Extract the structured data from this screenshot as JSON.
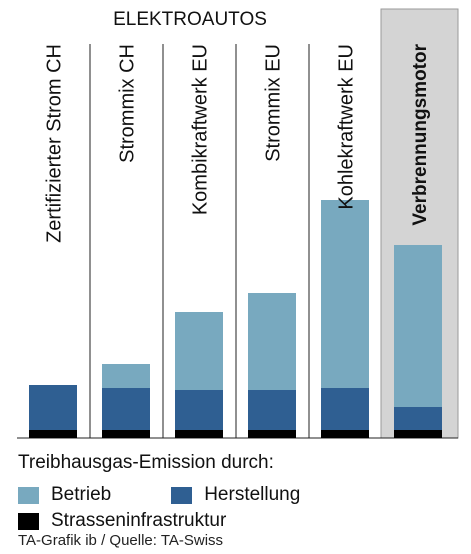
{
  "colors": {
    "betrieb": "#78a9bf",
    "herstellung": "#2f5f92",
    "infrastruktur": "#000000",
    "highlight_bg": "#d4d4d4",
    "divider": "#222222"
  },
  "chart_data": {
    "type": "bar",
    "stacked": true,
    "title": "ELEKTROAUTOS",
    "categories": [
      "Zertifizierter Strom CH",
      "Strommix CH",
      "Kombikraftwerk EU",
      "Strommix EU",
      "Kohlekraftwerk EU",
      "Verbrennungsmotor"
    ],
    "highlighted_category": "Verbrennungsmotor",
    "series": [
      {
        "name": "Strasseninfrastruktur",
        "color": "#000000",
        "values": [
          8,
          8,
          8,
          8,
          8,
          8
        ]
      },
      {
        "name": "Herstellung",
        "color": "#2f5f92",
        "values": [
          45,
          42,
          40,
          40,
          42,
          23
        ]
      },
      {
        "name": "Betrieb",
        "color": "#78a9bf",
        "values": [
          0,
          24,
          78,
          97,
          188,
          162
        ]
      }
    ],
    "legend_title": "Treibhausgas-Emission durch:",
    "legend_placement": "bottom",
    "grid": false
  },
  "legend": {
    "title": "Treibhausgas-Emission durch:",
    "items": [
      {
        "label": "Betrieb",
        "color": "#78a9bf"
      },
      {
        "label": "Herstellung",
        "color": "#2f5f92"
      },
      {
        "label": "Strasseninfrastruktur",
        "color": "#000000"
      }
    ]
  },
  "source": "TA-Grafik ib / Quelle: TA-Swiss"
}
